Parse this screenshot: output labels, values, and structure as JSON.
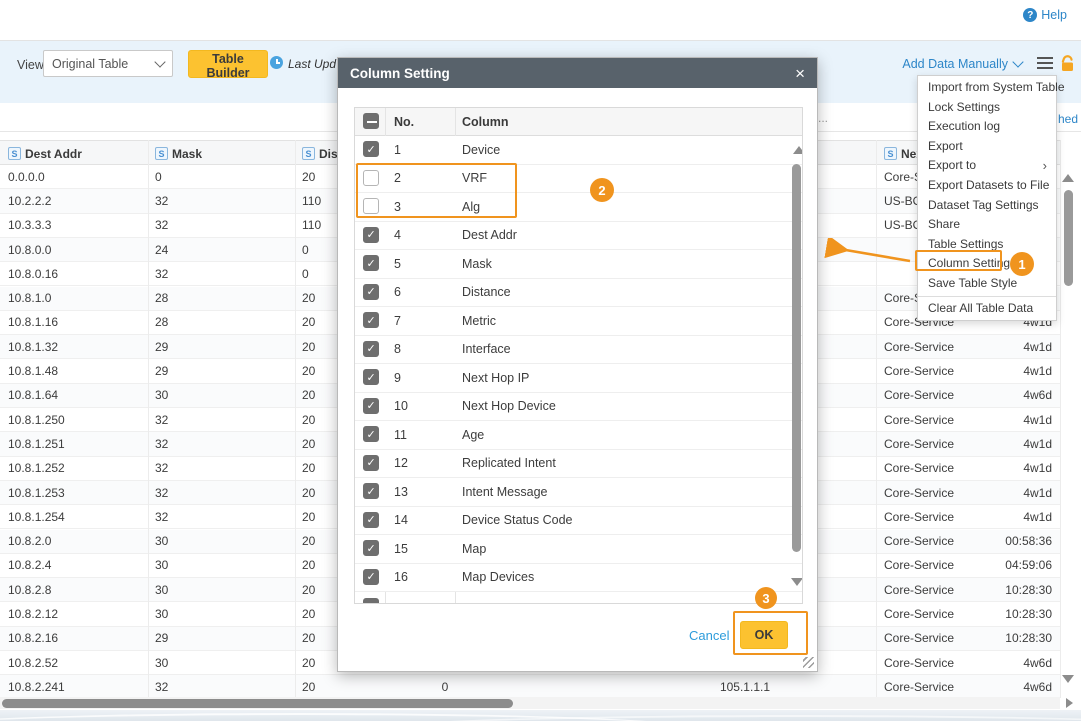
{
  "header": {
    "help_label": "Help"
  },
  "toolbar": {
    "view_label": "View:",
    "view_value": "Original Table",
    "table_builder_label": "Table Builder",
    "last_updated_label": "Last Upd",
    "add_data_label": "Add Data Manually",
    "search_hint": "...",
    "refreshed_partial": "hed"
  },
  "main_table": {
    "type_badge": "S",
    "headers": [
      {
        "key": "dest-addr",
        "label": "Dest Addr"
      },
      {
        "key": "mask",
        "label": "Mask"
      },
      {
        "key": "distance",
        "label": "Distance"
      },
      {
        "key": "next-hop-device",
        "label": "Next Hop Device"
      }
    ],
    "rows": [
      {
        "dest": "0.0.0.0",
        "mask": "0",
        "distance": "20",
        "metric": "",
        "next_hop_ip": "",
        "next_hop_device": "Core-Service",
        "age": ""
      },
      {
        "dest": "10.2.2.2",
        "mask": "32",
        "distance": "110",
        "metric": "",
        "next_hop_ip": "",
        "next_hop_device": "US-BOS",
        "age": ""
      },
      {
        "dest": "10.3.3.3",
        "mask": "32",
        "distance": "110",
        "metric": "",
        "next_hop_ip": "",
        "next_hop_device": "US-BOS",
        "age": ""
      },
      {
        "dest": "10.8.0.0",
        "mask": "24",
        "distance": "0",
        "metric": "",
        "next_hop_ip": "",
        "next_hop_device": "",
        "age": ""
      },
      {
        "dest": "10.8.0.16",
        "mask": "32",
        "distance": "0",
        "metric": "",
        "next_hop_ip": "",
        "next_hop_device": "",
        "age": ""
      },
      {
        "dest": "10.8.1.0",
        "mask": "28",
        "distance": "20",
        "metric": "",
        "next_hop_ip": "",
        "next_hop_device": "Core-Service",
        "age": ""
      },
      {
        "dest": "10.8.1.16",
        "mask": "28",
        "distance": "20",
        "metric": "",
        "next_hop_ip": "",
        "next_hop_device": "Core-Service",
        "age": "4w1d"
      },
      {
        "dest": "10.8.1.32",
        "mask": "29",
        "distance": "20",
        "metric": "",
        "next_hop_ip": "",
        "next_hop_device": "Core-Service",
        "age": "4w1d"
      },
      {
        "dest": "10.8.1.48",
        "mask": "29",
        "distance": "20",
        "metric": "",
        "next_hop_ip": "",
        "next_hop_device": "Core-Service",
        "age": "4w1d"
      },
      {
        "dest": "10.8.1.64",
        "mask": "30",
        "distance": "20",
        "metric": "",
        "next_hop_ip": "",
        "next_hop_device": "Core-Service",
        "age": "4w6d"
      },
      {
        "dest": "10.8.1.250",
        "mask": "32",
        "distance": "20",
        "metric": "",
        "next_hop_ip": "",
        "next_hop_device": "Core-Service",
        "age": "4w1d"
      },
      {
        "dest": "10.8.1.251",
        "mask": "32",
        "distance": "20",
        "metric": "",
        "next_hop_ip": "",
        "next_hop_device": "Core-Service",
        "age": "4w1d"
      },
      {
        "dest": "10.8.1.252",
        "mask": "32",
        "distance": "20",
        "metric": "",
        "next_hop_ip": "",
        "next_hop_device": "Core-Service",
        "age": "4w1d"
      },
      {
        "dest": "10.8.1.253",
        "mask": "32",
        "distance": "20",
        "metric": "",
        "next_hop_ip": "",
        "next_hop_device": "Core-Service",
        "age": "4w1d"
      },
      {
        "dest": "10.8.1.254",
        "mask": "32",
        "distance": "20",
        "metric": "",
        "next_hop_ip": "",
        "next_hop_device": "Core-Service",
        "age": "4w1d"
      },
      {
        "dest": "10.8.2.0",
        "mask": "30",
        "distance": "20",
        "metric": "",
        "next_hop_ip": "",
        "next_hop_device": "Core-Service",
        "age": "00:58:36"
      },
      {
        "dest": "10.8.2.4",
        "mask": "30",
        "distance": "20",
        "metric": "",
        "next_hop_ip": "",
        "next_hop_device": "Core-Service",
        "age": "04:59:06"
      },
      {
        "dest": "10.8.2.8",
        "mask": "30",
        "distance": "20",
        "metric": "",
        "next_hop_ip": "",
        "next_hop_device": "Core-Service",
        "age": "10:28:30"
      },
      {
        "dest": "10.8.2.12",
        "mask": "30",
        "distance": "20",
        "metric": "",
        "next_hop_ip": "",
        "next_hop_device": "Core-Service",
        "age": "10:28:30"
      },
      {
        "dest": "10.8.2.16",
        "mask": "29",
        "distance": "20",
        "metric": "",
        "next_hop_ip": "",
        "next_hop_device": "Core-Service",
        "age": "10:28:30"
      },
      {
        "dest": "10.8.2.52",
        "mask": "30",
        "distance": "20",
        "metric": "",
        "next_hop_ip": "",
        "next_hop_device": "Core-Service",
        "age": "4w6d"
      },
      {
        "dest": "10.8.2.241",
        "mask": "32",
        "distance": "20",
        "metric": "0",
        "next_hop_ip": "105.1.1.1",
        "next_hop_device": "Core-Service",
        "age": "4w6d"
      }
    ]
  },
  "context_menu": {
    "highlighted_item": "Column Settings",
    "items": [
      {
        "label": "Import from System Table"
      },
      {
        "label": "Lock Settings"
      },
      {
        "label": "Execution log"
      },
      {
        "label": "Export"
      },
      {
        "label": "Export to",
        "submenu": true
      },
      {
        "label": "Export Datasets to File"
      },
      {
        "label": "Dataset Tag Settings"
      },
      {
        "label": "Share"
      },
      {
        "label": "Table Settings"
      },
      {
        "label": "Column Settings",
        "highlighted": true
      },
      {
        "label": "Save Table Style"
      },
      {
        "label": "Clear All Table Data",
        "separator_before": true
      }
    ]
  },
  "dialog": {
    "title": "Column Setting",
    "table_headers": {
      "no": "No.",
      "column": "Column"
    },
    "rows": [
      {
        "no": "1",
        "label": "Device",
        "checked": true
      },
      {
        "no": "2",
        "label": "VRF",
        "checked": false
      },
      {
        "no": "3",
        "label": "Alg",
        "checked": false
      },
      {
        "no": "4",
        "label": "Dest Addr",
        "checked": true
      },
      {
        "no": "5",
        "label": "Mask",
        "checked": true
      },
      {
        "no": "6",
        "label": "Distance",
        "checked": true
      },
      {
        "no": "7",
        "label": "Metric",
        "checked": true
      },
      {
        "no": "8",
        "label": "Interface",
        "checked": true
      },
      {
        "no": "9",
        "label": "Next Hop IP",
        "checked": true
      },
      {
        "no": "10",
        "label": "Next Hop Device",
        "checked": true
      },
      {
        "no": "11",
        "label": "Age",
        "checked": true
      },
      {
        "no": "12",
        "label": "Replicated Intent",
        "checked": true
      },
      {
        "no": "13",
        "label": "Intent Message",
        "checked": true
      },
      {
        "no": "14",
        "label": "Device Status Code",
        "checked": true
      },
      {
        "no": "15",
        "label": "Map",
        "checked": true
      },
      {
        "no": "16",
        "label": "Map Devices",
        "checked": true
      }
    ],
    "cancel_label": "Cancel",
    "ok_label": "OK"
  },
  "annotations": {
    "step1": "1",
    "step2": "2",
    "step3": "3"
  },
  "colors": {
    "accent_yellow": "#FCC230",
    "annotation_orange": "#F0941E",
    "link_blue": "#2D86C8",
    "dialog_header_bg": "#58626B",
    "toolbar_bg": "#E9F3FB",
    "lock_orange": "#F5A623",
    "scroll_thumb": "#8C8C8C"
  }
}
